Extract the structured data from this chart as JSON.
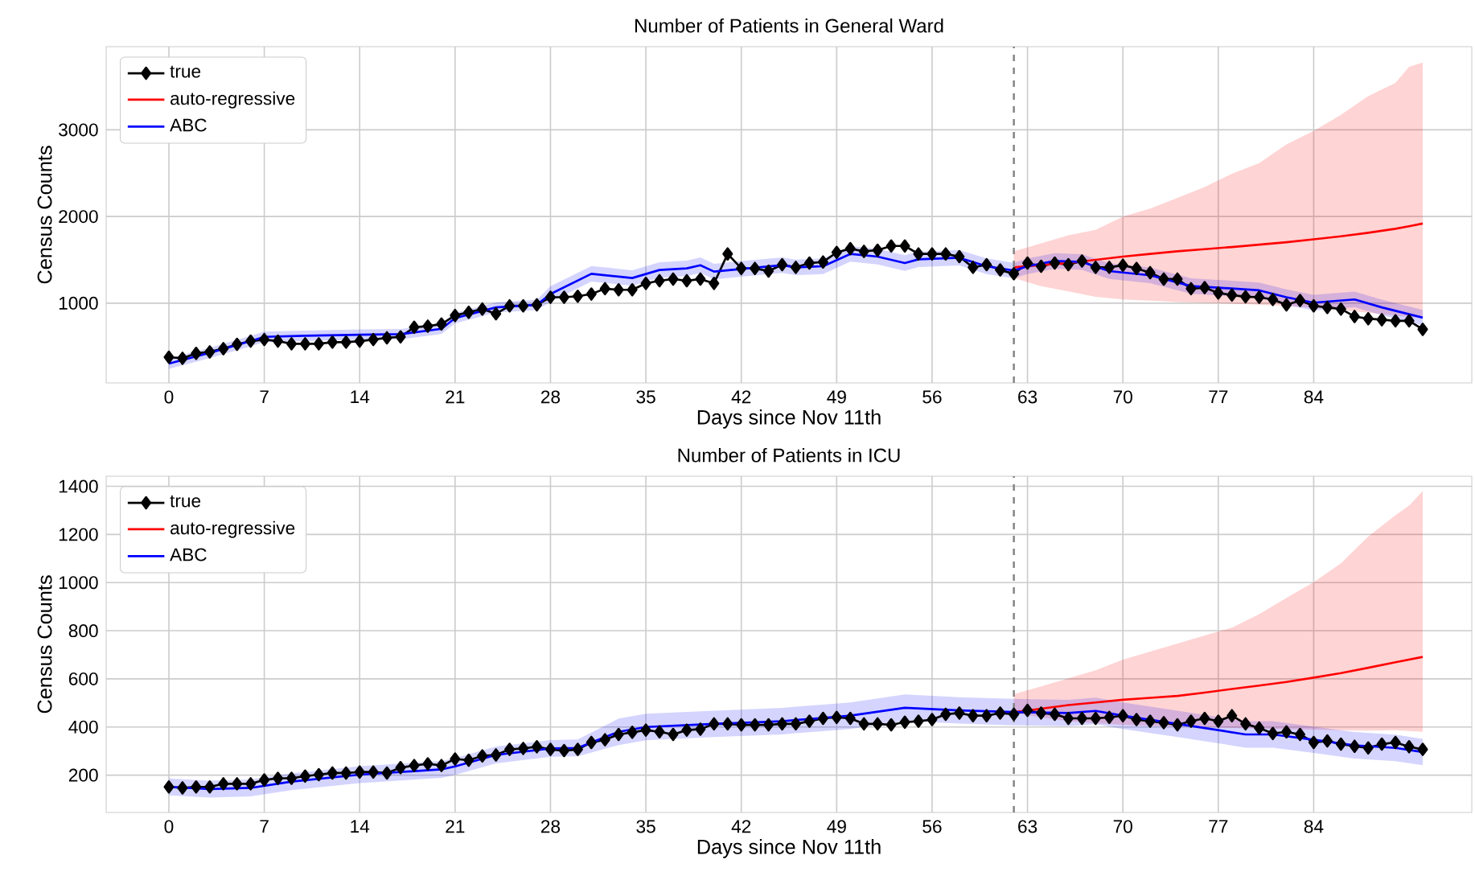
{
  "chart_data": [
    {
      "type": "line",
      "title": "Number of Patients in General Ward",
      "xlabel": "Days since Nov 11th",
      "ylabel": "Census Counts",
      "xlim": [
        -4.6,
        95.6
      ],
      "ylim": [
        80,
        3960
      ],
      "xticks": [
        0,
        7,
        14,
        21,
        28,
        35,
        42,
        49,
        56,
        63,
        70,
        77,
        84
      ],
      "yticks": [
        1000,
        2000,
        3000
      ],
      "grid": true,
      "legend": "top left",
      "ref_lines": [
        {
          "axis": "x",
          "value": 62,
          "color": "#808080",
          "line_style": "dashed"
        }
      ],
      "series": [
        {
          "name": "true",
          "color": "#000000",
          "marker": "diamond",
          "x": [
            0,
            1,
            2,
            3,
            4,
            5,
            6,
            7,
            8,
            9,
            10,
            11,
            12,
            13,
            14,
            15,
            16,
            17,
            18,
            19,
            20,
            21,
            22,
            23,
            24,
            25,
            26,
            27,
            28,
            29,
            30,
            31,
            32,
            33,
            34,
            35,
            36,
            37,
            38,
            39,
            40,
            41,
            42,
            43,
            44,
            45,
            46,
            47,
            48,
            49,
            50,
            51,
            52,
            53,
            54,
            55,
            56,
            57,
            58,
            59,
            60,
            61,
            62,
            63,
            64,
            65,
            66,
            67,
            68,
            69,
            70,
            71,
            72,
            73,
            74,
            75,
            76,
            77,
            78,
            79,
            80,
            81,
            82,
            83,
            84,
            85,
            86,
            87,
            88,
            89,
            90,
            91,
            92
          ],
          "values": [
            377,
            364,
            420,
            438,
            475,
            525,
            562,
            580,
            562,
            531,
            531,
            531,
            550,
            550,
            562,
            580,
            600,
            611,
            722,
            735,
            759,
            858,
            895,
            932,
            877,
            969,
            969,
            981,
            1068,
            1068,
            1080,
            1105,
            1167,
            1154,
            1154,
            1228,
            1259,
            1278,
            1259,
            1278,
            1228,
            1568,
            1401,
            1401,
            1370,
            1444,
            1413,
            1463,
            1475,
            1586,
            1629,
            1598,
            1611,
            1660,
            1660,
            1568,
            1568,
            1568,
            1537,
            1413,
            1444,
            1383,
            1339,
            1463,
            1426,
            1463,
            1444,
            1487,
            1413,
            1413,
            1438,
            1401,
            1352,
            1278,
            1278,
            1167,
            1179,
            1117,
            1093,
            1074,
            1068,
            1043,
            981,
            1031,
            969,
            951,
            932,
            846,
            821,
            809,
            796,
            796,
            698
          ]
        },
        {
          "name": "auto-regressive",
          "color": "#ff0000",
          "marker": "none",
          "x": [
            62,
            64,
            66,
            68,
            70,
            72,
            74,
            76,
            78,
            80,
            82,
            84,
            86,
            88,
            90,
            91,
            92
          ],
          "values": [
            1413,
            1440,
            1463,
            1500,
            1537,
            1568,
            1598,
            1623,
            1648,
            1675,
            1703,
            1737,
            1771,
            1812,
            1858,
            1888,
            1919
          ],
          "lower": [
            1290,
            1197,
            1136,
            1074,
            1043,
            1028,
            1012,
            1003,
            994,
            982,
            969,
            945,
            920,
            890,
            858,
            842,
            827
          ],
          "upper": [
            1598,
            1691,
            1784,
            1845,
            1999,
            2092,
            2215,
            2339,
            2493,
            2616,
            2832,
            2987,
            3172,
            3388,
            3542,
            3727,
            3776
          ]
        },
        {
          "name": "ABC",
          "color": "#0000ff",
          "marker": "none",
          "x": [
            0,
            3,
            6,
            7,
            10,
            14,
            17,
            20,
            21,
            24,
            27,
            28,
            31,
            34,
            36,
            38,
            39,
            40,
            42,
            45,
            46,
            48,
            50,
            52,
            54,
            55,
            58,
            60,
            62,
            63,
            65,
            67,
            69,
            72,
            75,
            77,
            80,
            82,
            84,
            87,
            89,
            92
          ],
          "values": [
            303,
            426,
            562,
            611,
            624,
            636,
            642,
            704,
            827,
            951,
            981,
            1105,
            1339,
            1290,
            1383,
            1401,
            1438,
            1364,
            1395,
            1438,
            1413,
            1426,
            1568,
            1537,
            1463,
            1506,
            1524,
            1426,
            1376,
            1426,
            1487,
            1475,
            1370,
            1321,
            1197,
            1179,
            1148,
            1068,
            1006,
            1043,
            951,
            833
          ],
          "lower": [
            243,
            366,
            502,
            551,
            564,
            576,
            582,
            644,
            767,
            891,
            921,
            1015,
            1249,
            1200,
            1293,
            1311,
            1348,
            1274,
            1305,
            1348,
            1323,
            1336,
            1478,
            1447,
            1373,
            1416,
            1434,
            1336,
            1286,
            1336,
            1397,
            1385,
            1280,
            1231,
            1107,
            1089,
            1058,
            978,
            916,
            953,
            861,
            743
          ],
          "upper": [
            363,
            486,
            622,
            671,
            684,
            696,
            702,
            764,
            887,
            1011,
            1041,
            1195,
            1429,
            1380,
            1473,
            1491,
            1528,
            1454,
            1485,
            1528,
            1503,
            1516,
            1658,
            1627,
            1553,
            1596,
            1614,
            1516,
            1466,
            1516,
            1577,
            1565,
            1460,
            1411,
            1287,
            1269,
            1238,
            1158,
            1096,
            1133,
            1041,
            923
          ]
        }
      ]
    },
    {
      "type": "line",
      "title": "Number of Patients in ICU",
      "xlabel": "Days since Nov 11th",
      "ylabel": "Census Counts",
      "xlim": [
        -4.6,
        95.6
      ],
      "ylim": [
        45,
        1442
      ],
      "xticks": [
        0,
        7,
        14,
        21,
        28,
        35,
        42,
        49,
        56,
        63,
        70,
        77,
        84
      ],
      "yticks": [
        200,
        400,
        600,
        800,
        1000,
        1200,
        1400
      ],
      "grid": true,
      "legend": "top left",
      "ref_lines": [
        {
          "axis": "x",
          "value": 62,
          "color": "#808080",
          "line_style": "dashed"
        }
      ],
      "series": [
        {
          "name": "true",
          "color": "#000000",
          "marker": "diamond",
          "x": [
            0,
            1,
            2,
            3,
            4,
            5,
            6,
            7,
            8,
            9,
            10,
            11,
            12,
            13,
            14,
            15,
            16,
            17,
            18,
            19,
            20,
            21,
            22,
            23,
            24,
            25,
            26,
            27,
            28,
            29,
            30,
            31,
            32,
            33,
            34,
            35,
            36,
            37,
            38,
            39,
            40,
            41,
            42,
            43,
            44,
            45,
            46,
            47,
            48,
            49,
            50,
            51,
            52,
            53,
            54,
            55,
            56,
            57,
            58,
            59,
            60,
            61,
            62,
            63,
            64,
            65,
            66,
            67,
            68,
            69,
            70,
            71,
            72,
            73,
            74,
            75,
            76,
            77,
            78,
            79,
            80,
            81,
            82,
            83,
            84,
            85,
            86,
            87,
            88,
            89,
            90,
            91,
            92
          ],
          "values": [
            151,
            147,
            151,
            151,
            164,
            164,
            164,
            180,
            187,
            187,
            196,
            202,
            209,
            209,
            213,
            213,
            209,
            231,
            240,
            247,
            240,
            267,
            262,
            280,
            284,
            307,
            311,
            318,
            307,
            302,
            307,
            336,
            347,
            369,
            378,
            387,
            380,
            369,
            387,
            391,
            413,
            413,
            409,
            409,
            409,
            413,
            413,
            424,
            436,
            440,
            436,
            413,
            413,
            409,
            420,
            424,
            431,
            453,
            458,
            447,
            447,
            458,
            453,
            469,
            458,
            453,
            436,
            436,
            436,
            440,
            447,
            431,
            424,
            418,
            409,
            424,
            436,
            424,
            447,
            413,
            396,
            373,
            380,
            369,
            336,
            342,
            329,
            320,
            313,
            329,
            336,
            318,
            307
          ]
        },
        {
          "name": "auto-regressive",
          "color": "#ff0000",
          "marker": "none",
          "x": [
            62,
            64,
            66,
            68,
            70,
            72,
            74,
            76,
            78,
            80,
            82,
            84,
            86,
            88,
            90,
            91,
            92
          ],
          "values": [
            462,
            476,
            491,
            502,
            513,
            521,
            529,
            543,
            558,
            572,
            587,
            605,
            624,
            646,
            669,
            680,
            691
          ],
          "lower": [
            458,
            440,
            424,
            416,
            409,
            405,
            402,
            399,
            396,
            393,
            391,
            389,
            387,
            385,
            387,
            383,
            380
          ],
          "upper": [
            536,
            569,
            602,
            636,
            680,
            713,
            747,
            780,
            813,
            869,
            936,
            1002,
            1080,
            1191,
            1280,
            1320,
            1380
          ]
        },
        {
          "name": "ABC",
          "color": "#0000ff",
          "marker": "none",
          "x": [
            0,
            3,
            6,
            9,
            14,
            20,
            21,
            24,
            28,
            30,
            33,
            35,
            40,
            45,
            46,
            50,
            54,
            58,
            62,
            66,
            68,
            70,
            74,
            77,
            79,
            81,
            84,
            87,
            90,
            92
          ],
          "values": [
            151,
            142,
            147,
            173,
            202,
            224,
            236,
            284,
            311,
            313,
            380,
            400,
            413,
            424,
            429,
            447,
            480,
            469,
            462,
            458,
            467,
            447,
            413,
            387,
            369,
            369,
            347,
            324,
            313,
            296
          ],
          "lower": [
            116,
            107,
            112,
            138,
            167,
            189,
            201,
            249,
            276,
            278,
            325,
            345,
            358,
            369,
            374,
            392,
            425,
            414,
            407,
            403,
            412,
            392,
            358,
            332,
            314,
            314,
            292,
            269,
            258,
            241
          ],
          "upper": [
            186,
            177,
            182,
            208,
            237,
            259,
            271,
            319,
            346,
            348,
            435,
            455,
            468,
            479,
            484,
            502,
            535,
            524,
            517,
            513,
            522,
            502,
            468,
            442,
            424,
            424,
            402,
            379,
            368,
            351
          ]
        }
      ]
    }
  ]
}
